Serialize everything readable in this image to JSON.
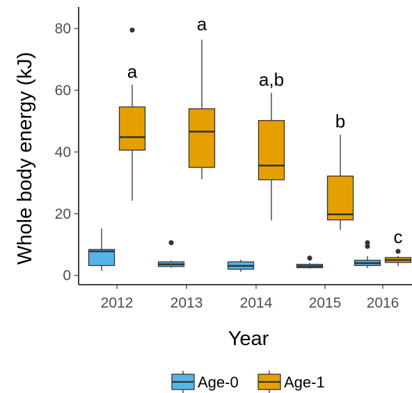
{
  "chart_data": {
    "type": "box",
    "xlabel": "Year",
    "ylabel": "Whole body energy (kJ)",
    "ylim": [
      -3,
      87
    ],
    "yticks": [
      0,
      20,
      40,
      60,
      80
    ],
    "categories": [
      "2012",
      "2013",
      "2014",
      "2015",
      "2016"
    ],
    "legend_position": "bottom",
    "grid": false,
    "series": [
      {
        "name": "Age-0",
        "color": "#56B4E9",
        "boxes": [
          {
            "category": "2012",
            "whisker_low": 1.5,
            "q1": 3.2,
            "median": 7.8,
            "q3": 8.4,
            "whisker_high": 15.2,
            "outliers": []
          },
          {
            "category": "2013",
            "whisker_low": 2.5,
            "q1": 2.9,
            "median": 3.6,
            "q3": 4.4,
            "whisker_high": 4.8,
            "outliers": [
              10.6
            ]
          },
          {
            "category": "2014",
            "whisker_low": 1.2,
            "q1": 2.0,
            "median": 3.1,
            "q3": 4.4,
            "whisker_high": 5.1,
            "outliers": []
          },
          {
            "category": "2015",
            "whisker_low": 2.2,
            "q1": 2.5,
            "median": 3.0,
            "q3": 3.6,
            "whisker_high": 4.1,
            "outliers": [
              5.6
            ]
          },
          {
            "category": "2016",
            "whisker_low": 2.4,
            "q1": 3.2,
            "median": 4.0,
            "q3": 4.9,
            "whisker_high": 6.2,
            "outliers": [
              9.4,
              10.6
            ]
          }
        ]
      },
      {
        "name": "Age-1",
        "color": "#E69F00",
        "boxes": [
          {
            "category": "2012",
            "whisker_low": 24.2,
            "q1": 40.6,
            "median": 44.8,
            "q3": 54.6,
            "whisker_high": 61.8,
            "outliers": [
              79.5
            ]
          },
          {
            "category": "2013",
            "whisker_low": 31.2,
            "q1": 35.0,
            "median": 46.6,
            "q3": 54.0,
            "whisker_high": 76.4,
            "outliers": []
          },
          {
            "category": "2014",
            "whisker_low": 17.8,
            "q1": 31.0,
            "median": 35.6,
            "q3": 50.2,
            "whisker_high": 59.2,
            "outliers": []
          },
          {
            "category": "2015",
            "whisker_low": 14.8,
            "q1": 18.0,
            "median": 19.8,
            "q3": 32.2,
            "whisker_high": 45.6,
            "outliers": []
          },
          {
            "category": "2016",
            "whisker_low": 3.0,
            "q1": 4.2,
            "median": 5.0,
            "q3": 5.8,
            "whisker_high": 6.3,
            "outliers": [
              7.8
            ]
          }
        ]
      }
    ],
    "annotations": [
      {
        "category": "2012",
        "text": "a",
        "y": 64
      },
      {
        "category": "2013",
        "text": "a",
        "y": 79.5
      },
      {
        "category": "2014",
        "text": "a,b",
        "y": 61.5
      },
      {
        "category": "2015",
        "text": "b",
        "y": 48
      },
      {
        "category": "2016",
        "text": "c",
        "y": 10.5
      }
    ]
  }
}
